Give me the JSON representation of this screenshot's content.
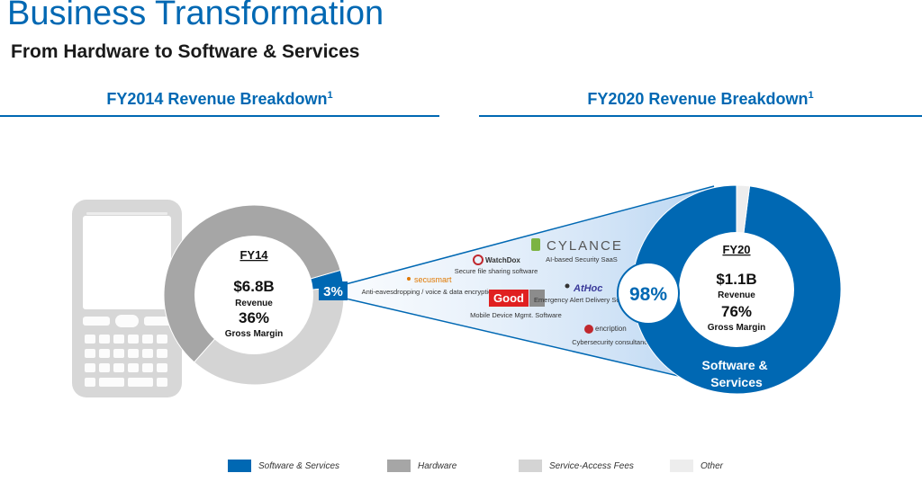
{
  "header": {
    "title": "Business Transformation",
    "subtitle": "From Hardware to Software & Services"
  },
  "colors": {
    "software_services": "#0068B3",
    "hardware": "#A6A6A6",
    "service_access_fees": "#D4D4D4",
    "other": "#EDEDED"
  },
  "chart_data": [
    {
      "type": "pie",
      "title": "FY2014 Revenue Breakdown",
      "title_footnote": "1",
      "period": "FY14",
      "revenue": "$6.8B",
      "revenue_label": "Revenue",
      "gross_margin": "36%",
      "gross_margin_label": "Gross Margin",
      "series": [
        {
          "name": "Software & Services",
          "value": 3,
          "color": "#0068B3"
        },
        {
          "name": "Service-Access Fees",
          "value": 38,
          "color": "#D4D4D4"
        },
        {
          "name": "Hardware",
          "value": 59,
          "color": "#A6A6A6"
        }
      ],
      "slice_labels": {
        "software_services": "3%"
      }
    },
    {
      "type": "pie",
      "title": "FY2020 Revenue Breakdown",
      "title_footnote": "1",
      "period": "FY20",
      "revenue": "$1.1B",
      "revenue_label": "Revenue",
      "gross_margin": "76%",
      "gross_margin_label": "Gross Margin",
      "series": [
        {
          "name": "Software & Services",
          "value": 98,
          "color": "#0068B3"
        },
        {
          "name": "Other",
          "value": 2,
          "color": "#EDEDED"
        }
      ],
      "slice_labels": {
        "software_services": "98%",
        "software_services_name": "Software & Services"
      }
    }
  ],
  "acquisitions": [
    {
      "logo": "secusmart",
      "desc": "Anti-eavesdropping / voice & data encryption"
    },
    {
      "logo": "WatchDox",
      "desc": "Secure file sharing software"
    },
    {
      "logo": "Good",
      "desc": "Mobile Device Mgmt. Software"
    },
    {
      "logo": "CYLANCE",
      "desc": "AI-based Security SaaS"
    },
    {
      "logo": "AtHoc",
      "desc": "Emergency Alert Delivery Software"
    },
    {
      "logo": "encription",
      "desc": "Cybersecurity consultancy"
    }
  ],
  "legend": [
    {
      "label": "Software & Services",
      "color": "#0068B3"
    },
    {
      "label": "Hardware",
      "color": "#A6A6A6"
    },
    {
      "label": "Service-Access Fees",
      "color": "#D4D4D4"
    },
    {
      "label": "Other",
      "color": "#EDEDED"
    }
  ]
}
